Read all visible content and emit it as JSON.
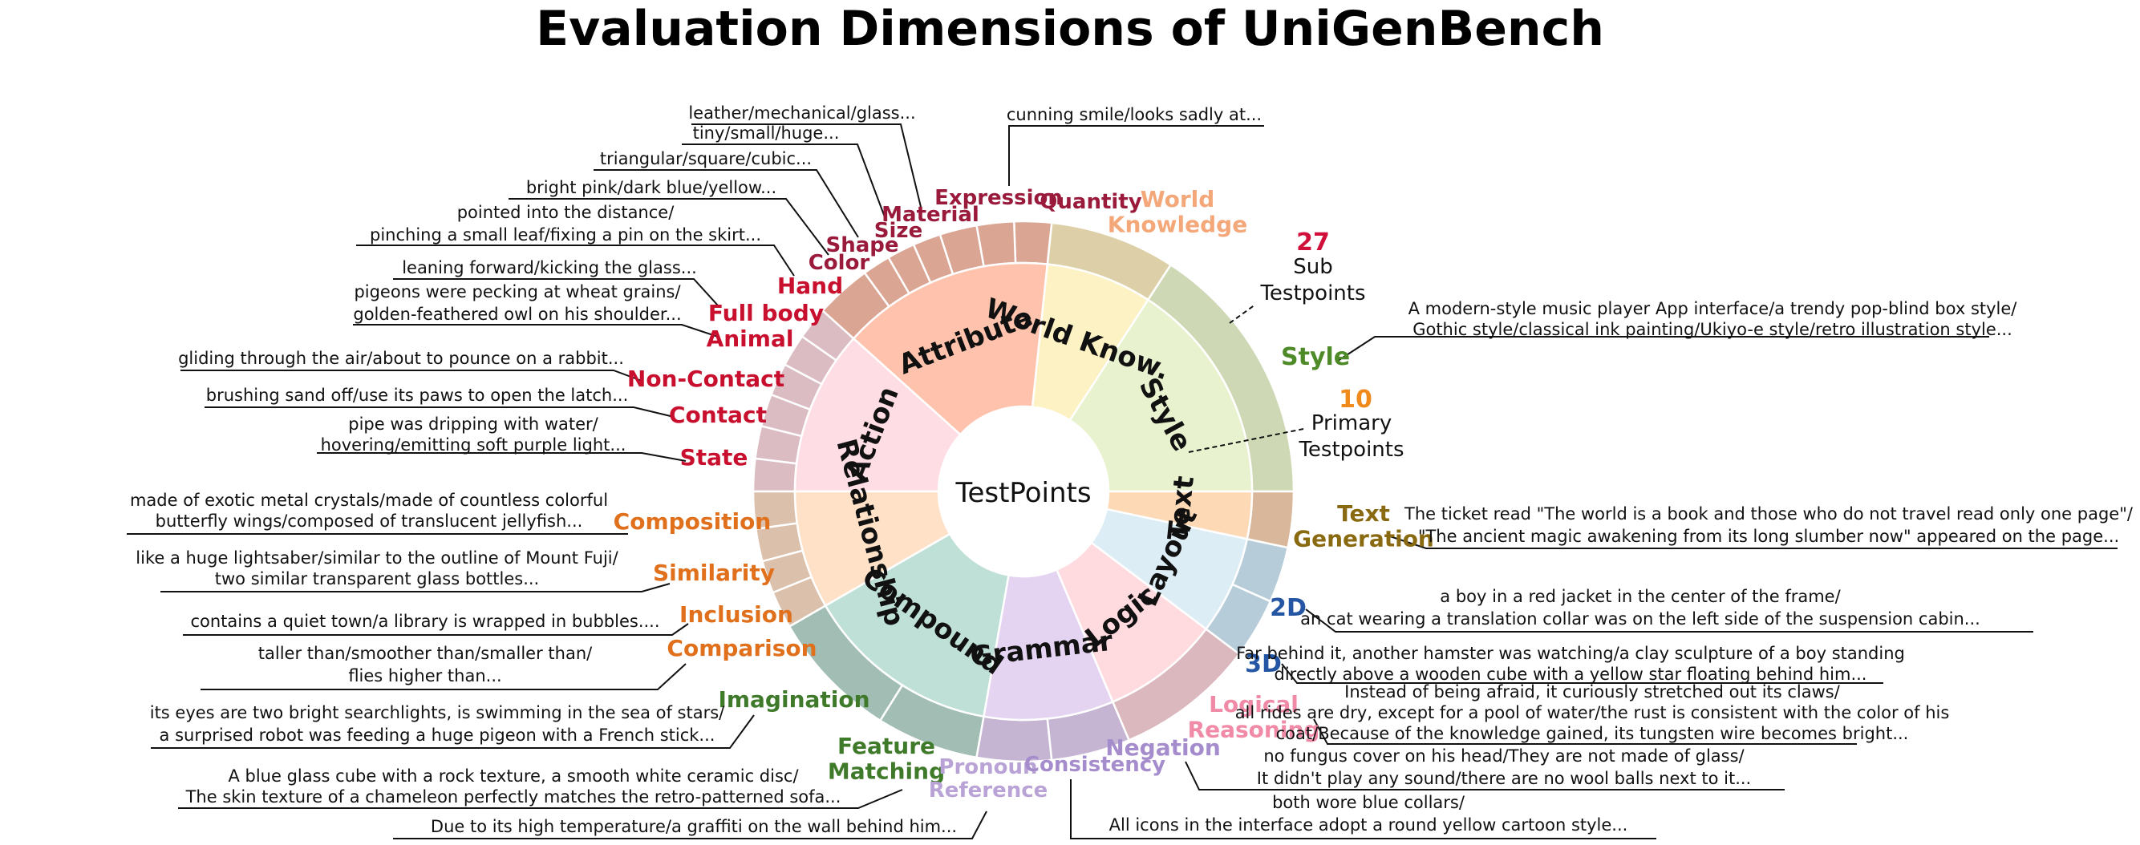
{
  "title": "Evaluation Dimensions of UniGenBench",
  "center": "TestPoints",
  "stats": {
    "sub_count": "27",
    "sub_label": [
      "Sub",
      "Testpoints"
    ],
    "primary_count": "10",
    "primary_label": [
      "Primary",
      "Testpoints"
    ],
    "sub_color": "#d0103a",
    "primary_color": "#f08a1c"
  },
  "categories": [
    {
      "name": "Style",
      "color": "#e8f2cf",
      "outer": "#cfd8b4"
    },
    {
      "name": "World Know.",
      "color": "#fdf2c4",
      "outer": "#ddd0a8"
    },
    {
      "name": "Attribute",
      "color": "#ffc3ad",
      "outer": "#dba594"
    },
    {
      "name": "Action",
      "color": "#ffdde4",
      "outer": "#dbbcc3"
    },
    {
      "name": "Relationship",
      "color": "#ffe1c8",
      "outer": "#dbc0ab"
    },
    {
      "name": "Compound",
      "color": "#bfe0d6",
      "outer": "#a1bdb4"
    },
    {
      "name": "Grammar",
      "color": "#e4d4f2",
      "outer": "#c5b5d2"
    },
    {
      "name": "Logic",
      "color": "#ffdbe0",
      "outer": "#dab8bd"
    },
    {
      "name": "Layout",
      "color": "#dcedf6",
      "outer": "#b6ccd8"
    },
    {
      "name": "Text",
      "color": "#fdd9b6",
      "outer": "#d9b79a"
    }
  ],
  "subs": [
    {
      "label": "Style",
      "color": "#4e8a28",
      "examples": [
        "A modern-style music player App interface/a trendy pop-blind box style/",
        "Gothic style/classical ink painting/Ukiyo-e style/retro illustration style..."
      ]
    },
    {
      "label": "World Knowledge",
      "color": "#f4a87a",
      "examples": []
    },
    {
      "label": "Quantity",
      "color": "#9a1a3c",
      "examples": []
    },
    {
      "label": "Expression",
      "color": "#9a1a3c",
      "examples": [
        "cunning smile/looks sadly at..."
      ]
    },
    {
      "label": "Material",
      "color": "#9a1a3c",
      "examples": [
        "leather/mechanical/glass..."
      ]
    },
    {
      "label": "Size",
      "color": "#9a1a3c",
      "examples": [
        "tiny/small/huge..."
      ]
    },
    {
      "label": "Shape",
      "color": "#9a1a3c",
      "examples": [
        "triangular/square/cubic..."
      ]
    },
    {
      "label": "Color",
      "color": "#9a1a3c",
      "examples": [
        "bright pink/dark blue/yellow..."
      ]
    },
    {
      "label": "Hand",
      "color": "#c8102e",
      "examples": [
        "pointed into the distance/",
        "pinching a small leaf/fixing a pin on the skirt..."
      ]
    },
    {
      "label": "Full body",
      "color": "#c8102e",
      "examples": [
        "leaning forward/kicking the glass..."
      ]
    },
    {
      "label": "Animal",
      "color": "#c8102e",
      "examples": [
        "pigeons were pecking at wheat grains/",
        "golden-feathered owl on his shoulder..."
      ]
    },
    {
      "label": "Non-Contact",
      "color": "#c8102e",
      "examples": [
        "gliding through the air/about to pounce on a rabbit..."
      ]
    },
    {
      "label": "Contact",
      "color": "#c8102e",
      "examples": [
        "brushing sand off/use its paws to open the latch..."
      ]
    },
    {
      "label": "State",
      "color": "#c8102e",
      "examples": [
        "pipe was dripping with water/",
        "hovering/emitting soft purple light..."
      ]
    },
    {
      "label": "Composition",
      "color": "#e0701c",
      "examples": [
        "made of exotic metal crystals/made of countless colorful",
        "butterfly wings/composed of translucent jellyfish..."
      ]
    },
    {
      "label": "Similarity",
      "color": "#e0701c",
      "examples": [
        "like a huge lightsaber/similar to the outline of Mount Fuji/",
        "two similar transparent glass bottles..."
      ]
    },
    {
      "label": "Inclusion",
      "color": "#e0701c",
      "examples": [
        "contains a quiet town/a library is wrapped in bubbles...."
      ]
    },
    {
      "label": "Comparison",
      "color": "#e0701c",
      "examples": [
        "taller than/smoother than/smaller than/",
        "flies higher than..."
      ]
    },
    {
      "label": "Imagination",
      "color": "#3f7a2a",
      "examples": [
        "its eyes are two bright searchlights, is swimming in the sea of stars/",
        "a surprised robot was feeding a huge pigeon with a French stick..."
      ]
    },
    {
      "label": "Feature Matching",
      "color": "#3f7a2a",
      "examples": [
        "A blue glass cube with a rock texture, a smooth white ceramic disc/",
        "The skin texture of a chameleon perfectly matches the retro-patterned sofa..."
      ]
    },
    {
      "label": "Pronoun Reference",
      "color": "#b9a3d6",
      "examples": [
        "Due to its high temperature/a graffiti on the wall behind him..."
      ]
    },
    {
      "label": "Consistency",
      "color": "#a58ccc",
      "examples": [
        "both wore blue collars/",
        "All icons in the interface adopt a round yellow cartoon style..."
      ]
    },
    {
      "label": "Negation",
      "color": "#a58ccc",
      "examples": [
        "no fungus cover on his head/They are not made of glass/",
        "It didn't play any sound/there are no wool balls next to it..."
      ]
    },
    {
      "label": "Logical Reasoning",
      "color": "#f08aa6",
      "examples": [
        "Instead of being afraid, it curiously stretched out its claws/",
        "all rides are dry, except for a pool of water/the rust is consistent with the color of his",
        "coat/Because of the knowledge gained, its tungsten wire becomes bright..."
      ]
    },
    {
      "label": "3D",
      "color": "#2456a4",
      "examples": [
        "Far behind it, another hamster was watching/a clay sculpture of a boy standing",
        "directly above a wooden cube with a yellow star floating behind him..."
      ]
    },
    {
      "label": "2D",
      "color": "#2456a4",
      "examples": [
        "a boy in a red jacket in the center of the frame/",
        "an cat wearing a translation collar was on the left side of the suspension cabin..."
      ]
    },
    {
      "label": "Text Generation",
      "color": "#8a6a10",
      "examples": [
        "The ticket read \"The world is a book and those who do not travel read only one page\"/",
        "\"The ancient magic awakening from its long slumber now\" appeared on the page..."
      ]
    }
  ]
}
